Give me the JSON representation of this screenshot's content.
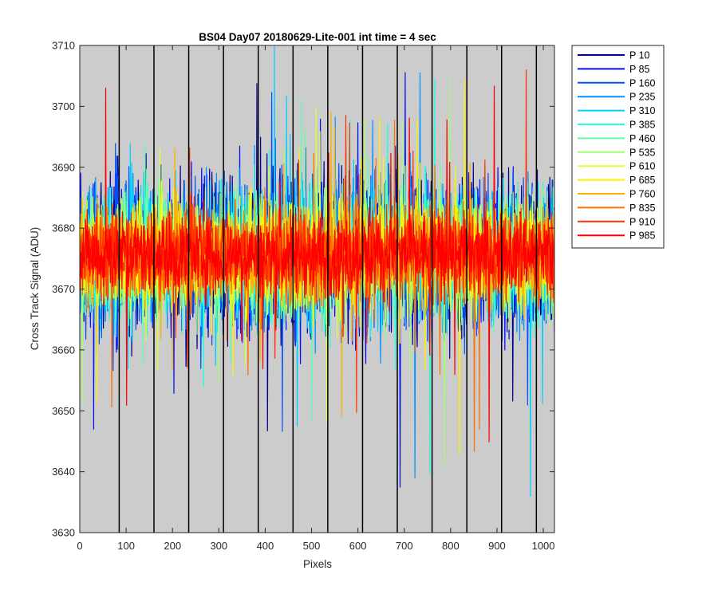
{
  "chart_data": {
    "type": "line",
    "title": "BS04 Day07 20180629-Lite-001 int time = 4 sec",
    "xlabel": "Pixels",
    "ylabel": "Cross Track Signal (ADU)",
    "xlim": [
      0,
      1024
    ],
    "ylim": [
      3630,
      3710
    ],
    "xticks": [
      0,
      100,
      200,
      300,
      400,
      500,
      600,
      700,
      800,
      900,
      1000
    ],
    "yticks": [
      3630,
      3640,
      3650,
      3660,
      3670,
      3680,
      3690,
      3700,
      3710
    ],
    "background": "#cccccc",
    "grid": false,
    "legend_position": "outside-right",
    "boundary_lines_x": [
      85,
      160,
      235,
      310,
      385,
      460,
      535,
      610,
      685,
      760,
      835,
      910,
      985
    ],
    "noise_summary": {
      "mean": 3676,
      "typical_min": 3655,
      "typical_max": 3700
    },
    "noted_extremes": [
      {
        "series": "P 310",
        "x": 420,
        "y": 3710
      },
      {
        "series": "P 310",
        "x": 972,
        "y": 3636
      },
      {
        "series": "P 85",
        "x": 30,
        "y": 3647
      },
      {
        "series": "P 835",
        "x": 862,
        "y": 3647
      },
      {
        "series": "P 985",
        "x": 56,
        "y": 3703
      },
      {
        "series": "P 910",
        "x": 963,
        "y": 3706
      }
    ],
    "series": [
      {
        "name": "P 10",
        "color": "#00008f"
      },
      {
        "name": "P 85",
        "color": "#0010ff"
      },
      {
        "name": "P 160",
        "color": "#0050ff"
      },
      {
        "name": "P 235",
        "color": "#0090ff"
      },
      {
        "name": "P 310",
        "color": "#00d0ff"
      },
      {
        "name": "P 385",
        "color": "#20ffdf"
      },
      {
        "name": "P 460",
        "color": "#60ffb0"
      },
      {
        "name": "P 535",
        "color": "#9fff70"
      },
      {
        "name": "P 610",
        "color": "#dfff30"
      },
      {
        "name": "P 685",
        "color": "#ffef00"
      },
      {
        "name": "P 760",
        "color": "#ffb000"
      },
      {
        "name": "P 835",
        "color": "#ff7000"
      },
      {
        "name": "P 910",
        "color": "#ff3000"
      },
      {
        "name": "P 985",
        "color": "#ff0000"
      }
    ]
  }
}
